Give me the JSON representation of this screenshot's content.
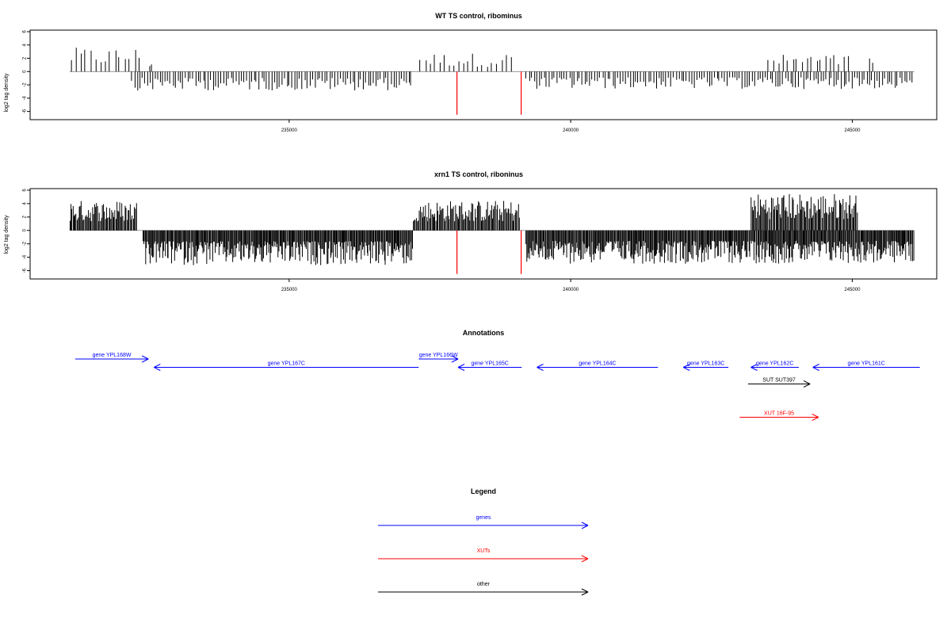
{
  "chart_data": [
    {
      "type": "bar",
      "title": "WT TS control, ribominus",
      "xlabel": "",
      "ylabel": "log2 tag density",
      "xlim": [
        230400,
        246500
      ],
      "ylim": [
        -7,
        6
      ],
      "yticks": [
        6,
        4,
        2,
        0,
        -2,
        -4,
        -6
      ],
      "xticks": [
        235000,
        240000,
        245000
      ],
      "xtick_labels": [
        "235000",
        "240000",
        "245000"
      ],
      "grid": false,
      "segments_pos": [
        {
          "range": [
            231100,
            232400
          ],
          "max": 3.6
        },
        {
          "range": [
            232500,
            232600
          ],
          "max": 2.2
        },
        {
          "range": [
            237300,
            239000
          ],
          "max": 2.8
        },
        {
          "range": [
            243500,
            245000
          ],
          "max": 2.6
        },
        {
          "range": [
            245300,
            245400
          ],
          "max": 2.3
        }
      ],
      "segments_neg": [
        {
          "range": [
            232200,
            237200
          ],
          "min": -3.8
        },
        {
          "range": [
            239200,
            246100
          ],
          "min": -3.5
        }
      ],
      "highlight_lines": [
        {
          "x": 237980,
          "y": -7,
          "color": "#ff0000"
        },
        {
          "x": 239120,
          "y": -7,
          "color": "#ff0000"
        }
      ],
      "bar_color": "#000000"
    },
    {
      "type": "bar",
      "title": "xrn1 TS control, riboninus",
      "xlabel": "",
      "ylabel": "log2 tag density",
      "xlim": [
        230400,
        246500
      ],
      "ylim": [
        -7,
        6
      ],
      "yticks": [
        6,
        4,
        2,
        0,
        -2,
        -4,
        -6
      ],
      "xticks": [
        235000,
        240000,
        245000
      ],
      "xtick_labels": [
        "235000",
        "240000",
        "245000"
      ],
      "grid": false,
      "segments_pos": [
        {
          "range": [
            231100,
            232300
          ],
          "max": 4.5
        },
        {
          "range": [
            237200,
            239100
          ],
          "max": 4.5
        },
        {
          "range": [
            243200,
            245100
          ],
          "max": 5.6
        }
      ],
      "segments_neg": [
        {
          "range": [
            232400,
            237200
          ],
          "min": -6.5
        },
        {
          "range": [
            239200,
            246100
          ],
          "min": -6.2
        }
      ],
      "highlight_lines": [
        {
          "x": 237980,
          "y": -7,
          "color": "#ff0000"
        },
        {
          "x": 239120,
          "y": -7,
          "color": "#ff0000"
        }
      ],
      "bar_color": "#000000"
    }
  ],
  "annotations": {
    "title": "Annotations",
    "xlim": [
      230400,
      246500
    ],
    "items": [
      {
        "label": "gene YPL168W",
        "start": 231200,
        "end": 232500,
        "row": 0,
        "color": "#0000ff"
      },
      {
        "label": "gene YPL167C",
        "start": 232600,
        "end": 237300,
        "row": 1,
        "color": "#0000ff"
      },
      {
        "label": "gene YPL166W",
        "start": 237300,
        "end": 238000,
        "row": 0,
        "color": "#0000ff"
      },
      {
        "label": "gene YPL165C",
        "start": 238000,
        "end": 239130,
        "row": 1,
        "color": "#0000ff"
      },
      {
        "label": "gene YPL164C",
        "start": 239400,
        "end": 241550,
        "row": 1,
        "color": "#0000ff"
      },
      {
        "label": "gene YPL163C",
        "start": 242000,
        "end": 242800,
        "row": 1,
        "color": "#0000ff"
      },
      {
        "label": "gene YPL162C",
        "start": 243200,
        "end": 244050,
        "row": 1,
        "color": "#0000ff"
      },
      {
        "label": "gene YPL161C",
        "start": 244300,
        "end": 246200,
        "row": 1,
        "color": "#0000ff"
      },
      {
        "label": "SUT SUT397",
        "start": 243150,
        "end": 244250,
        "row": 3,
        "color": "#000000"
      },
      {
        "label": "XUT 16F-95",
        "start": 243000,
        "end": 244400,
        "row": 7,
        "color": "#ff0000"
      }
    ]
  },
  "legend": {
    "title": "Legend",
    "items": [
      {
        "label": "genes",
        "color": "#0000ff"
      },
      {
        "label": "XUTs",
        "color": "#ff0000"
      },
      {
        "label": "other",
        "color": "#000000"
      }
    ]
  }
}
